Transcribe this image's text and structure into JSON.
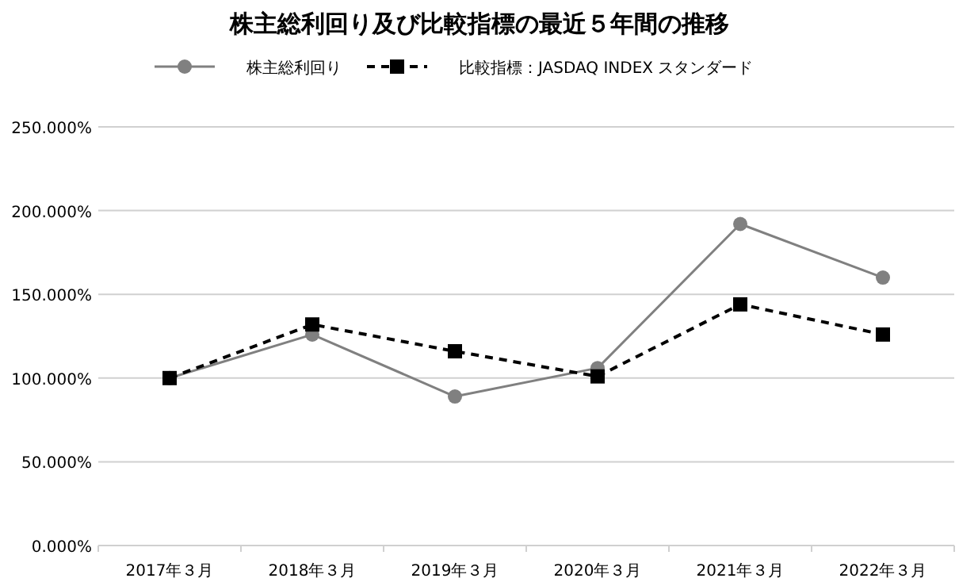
{
  "chart_data": {
    "type": "line",
    "title": "株主総利回り及び比較指標の最近５年間の推移",
    "categories": [
      "2017年３月",
      "2018年３月",
      "2019年３月",
      "2020年３月",
      "2021年３月",
      "2022年３月"
    ],
    "series": [
      {
        "name": "株主総利回り",
        "color": "#808080",
        "marker": "circle",
        "line_style": "solid",
        "values": [
          100,
          126,
          89,
          106,
          192,
          160
        ]
      },
      {
        "name": "比較指標：JASDAQ INDEX スタンダード",
        "color": "#000000",
        "marker": "square",
        "line_style": "dashed",
        "values": [
          100,
          132,
          116,
          101,
          144,
          126
        ]
      }
    ],
    "ylim": [
      0,
      250
    ],
    "yticks": [
      {
        "value": 0,
        "label": "0.000%"
      },
      {
        "value": 50,
        "label": "50.000%"
      },
      {
        "value": 100,
        "label": "100.000%"
      },
      {
        "value": 150,
        "label": "150.000%"
      },
      {
        "value": 200,
        "label": "200.000%"
      },
      {
        "value": 250,
        "label": "250.000%"
      }
    ],
    "grid": "y",
    "legend": "top"
  }
}
